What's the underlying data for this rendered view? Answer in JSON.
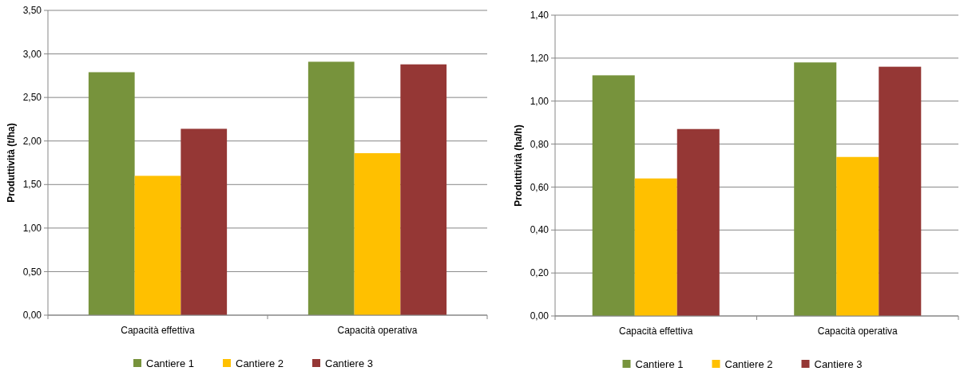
{
  "chart_data": [
    {
      "type": "bar",
      "ylabel": "Produttività (t/ha)",
      "categories": [
        "Capacità effettiva",
        "Capacità operativa"
      ],
      "series": [
        {
          "name": "Cantiere 1",
          "color": "#77933c",
          "values": [
            2.79,
            2.91
          ]
        },
        {
          "name": "Cantiere 2",
          "color": "#ffc000",
          "values": [
            1.6,
            1.86
          ]
        },
        {
          "name": "Cantiere 3",
          "color": "#953735",
          "values": [
            2.14,
            2.88
          ]
        }
      ],
      "ylim": [
        0,
        3.5
      ],
      "yticks": [
        {
          "value": 0,
          "label": "0,00"
        },
        {
          "value": 0.5,
          "label": "0,50"
        },
        {
          "value": 1,
          "label": "1,00"
        },
        {
          "value": 1.5,
          "label": "1,50"
        },
        {
          "value": 2,
          "label": "2,00"
        },
        {
          "value": 2.5,
          "label": "2,50"
        },
        {
          "value": 3,
          "label": "3,00"
        },
        {
          "value": 3.5,
          "label": "3,50"
        }
      ],
      "grid": "y",
      "legend": "bottom"
    },
    {
      "type": "bar",
      "ylabel": "Produttività (ha/h)",
      "categories": [
        "Capacità effettiva",
        "Capacità operativa"
      ],
      "series": [
        {
          "name": "Cantiere 1",
          "color": "#77933c",
          "values": [
            1.12,
            1.18
          ]
        },
        {
          "name": "Cantiere 2",
          "color": "#ffc000",
          "values": [
            0.64,
            0.74
          ]
        },
        {
          "name": "Cantiere 3",
          "color": "#953735",
          "values": [
            0.87,
            1.16
          ]
        }
      ],
      "ylim": [
        0,
        1.4
      ],
      "yticks": [
        {
          "value": 0,
          "label": "0,00"
        },
        {
          "value": 0.2,
          "label": "0,20"
        },
        {
          "value": 0.4,
          "label": "0,40"
        },
        {
          "value": 0.6,
          "label": "0,60"
        },
        {
          "value": 0.8,
          "label": "0,80"
        },
        {
          "value": 1,
          "label": "1,00"
        },
        {
          "value": 1.2,
          "label": "1,20"
        },
        {
          "value": 1.4,
          "label": "1,40"
        }
      ],
      "grid": "y",
      "legend": "bottom"
    }
  ]
}
